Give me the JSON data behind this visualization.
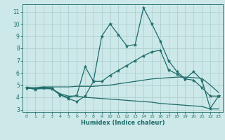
{
  "xlabel": "Humidex (Indice chaleur)",
  "background_color": "#cde8e8",
  "grid_color": "#a8cccc",
  "line_color": "#1e6b6b",
  "xlim": [
    -0.5,
    23.5
  ],
  "ylim": [
    2.8,
    11.6
  ],
  "xticks": [
    0,
    1,
    2,
    3,
    4,
    5,
    6,
    7,
    8,
    9,
    10,
    11,
    12,
    13,
    14,
    15,
    16,
    17,
    18,
    19,
    20,
    21,
    22,
    23
  ],
  "yticks": [
    3,
    4,
    5,
    6,
    7,
    8,
    9,
    10,
    11
  ],
  "line1_x": [
    0,
    1,
    2,
    3,
    4,
    5,
    6,
    7,
    8,
    9,
    10,
    11,
    12,
    13,
    14,
    15,
    16,
    17,
    18,
    19,
    20,
    21,
    22,
    23
  ],
  "line1_y": [
    4.8,
    4.65,
    4.8,
    4.7,
    4.2,
    4.0,
    4.15,
    6.5,
    5.3,
    9.0,
    10.0,
    9.1,
    8.2,
    8.3,
    11.3,
    10.0,
    8.6,
    7.0,
    6.1,
    5.5,
    5.4,
    4.8,
    4.1,
    4.1
  ],
  "line1_markers": true,
  "line2_x": [
    0,
    1,
    2,
    3,
    4,
    5,
    6,
    7,
    8,
    9,
    10,
    11,
    12,
    13,
    14,
    15,
    16,
    17,
    18,
    19,
    20,
    21,
    22,
    23
  ],
  "line2_y": [
    4.8,
    4.8,
    4.85,
    4.85,
    4.85,
    4.85,
    4.9,
    4.9,
    4.9,
    4.95,
    5.0,
    5.1,
    5.2,
    5.3,
    5.4,
    5.5,
    5.55,
    5.6,
    5.65,
    5.65,
    5.6,
    5.55,
    5.0,
    4.4
  ],
  "line2_markers": false,
  "line3_x": [
    0,
    1,
    2,
    3,
    4,
    5,
    6,
    7,
    8,
    9,
    10,
    11,
    12,
    13,
    14,
    15,
    16,
    17,
    18,
    19,
    20,
    21,
    22,
    23
  ],
  "line3_y": [
    4.75,
    4.7,
    4.8,
    4.75,
    4.2,
    3.9,
    3.65,
    4.1,
    5.3,
    5.3,
    5.8,
    6.2,
    6.6,
    7.0,
    7.4,
    7.7,
    7.85,
    6.25,
    5.9,
    5.5,
    6.1,
    5.4,
    3.1,
    4.1
  ],
  "line3_markers": true,
  "line4_x": [
    0,
    1,
    2,
    3,
    4,
    5,
    6,
    7,
    8,
    9,
    10,
    11,
    12,
    13,
    14,
    15,
    16,
    17,
    18,
    19,
    20,
    21,
    22,
    23
  ],
  "line4_y": [
    4.75,
    4.7,
    4.7,
    4.7,
    4.3,
    4.1,
    4.1,
    4.0,
    3.95,
    3.9,
    3.85,
    3.8,
    3.75,
    3.7,
    3.65,
    3.6,
    3.5,
    3.45,
    3.4,
    3.35,
    3.3,
    3.25,
    3.05,
    3.05
  ],
  "line4_markers": false
}
